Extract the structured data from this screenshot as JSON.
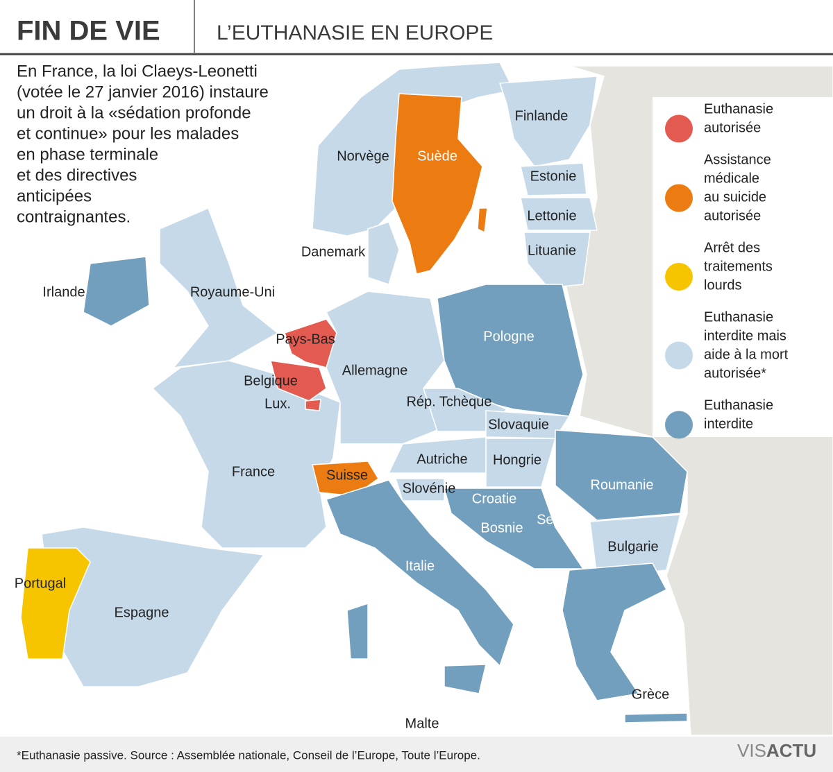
{
  "header": {
    "title": "FIN DE VIE",
    "subtitle": "L’EUTHANASIE EN EUROPE"
  },
  "intro": [
    "En France, la loi Claeys-Leonetti",
    "(votée le 27 janvier 2016) instaure",
    "un droit à la «sédation profonde",
    "et continue» pour les malades",
    "en phase terminale",
    "et des directives",
    "anticipées",
    "contraignantes."
  ],
  "legend": [
    {
      "label": [
        "Euthanasie",
        "autorisée"
      ],
      "color": "#e35a50"
    },
    {
      "label": [
        "Assistance",
        "médicale",
        "au suicide",
        "autorisée"
      ],
      "color": "#ec7c12"
    },
    {
      "label": [
        "Arrêt des",
        "traitements",
        "lourds"
      ],
      "color": "#f6c500"
    },
    {
      "label": [
        "Euthanasie",
        "interdite mais",
        "aide à la mort",
        "autorisée*"
      ],
      "color": "#c6d9e8"
    },
    {
      "label": [
        "Euthanasie",
        "interdite"
      ],
      "color": "#719fbd"
    }
  ],
  "countries": [
    "Finlande",
    "Norvège",
    "Suède",
    "Estonie",
    "Lettonie",
    "Lituanie",
    "Danemark",
    "Irlande",
    "Royaume-Uni",
    "Pays-Bas",
    "Belgique",
    "Lux.",
    "Allemagne",
    "Pologne",
    "Rép. Tchèque",
    "Slovaquie",
    "Autriche",
    "Hongrie",
    "France",
    "Suisse",
    "Slovénie",
    "Roumanie",
    "Croatie",
    "Serbie",
    "Bosnie",
    "Bulgarie",
    "Italie",
    "Portugal",
    "Espagne",
    "Grèce",
    "Malte"
  ],
  "footer": "*Euthanasie passive. Source : Assemblée nationale, Conseil de l’Europe, Toute l’Europe.",
  "logo": [
    "VIS",
    "ACTU"
  ]
}
